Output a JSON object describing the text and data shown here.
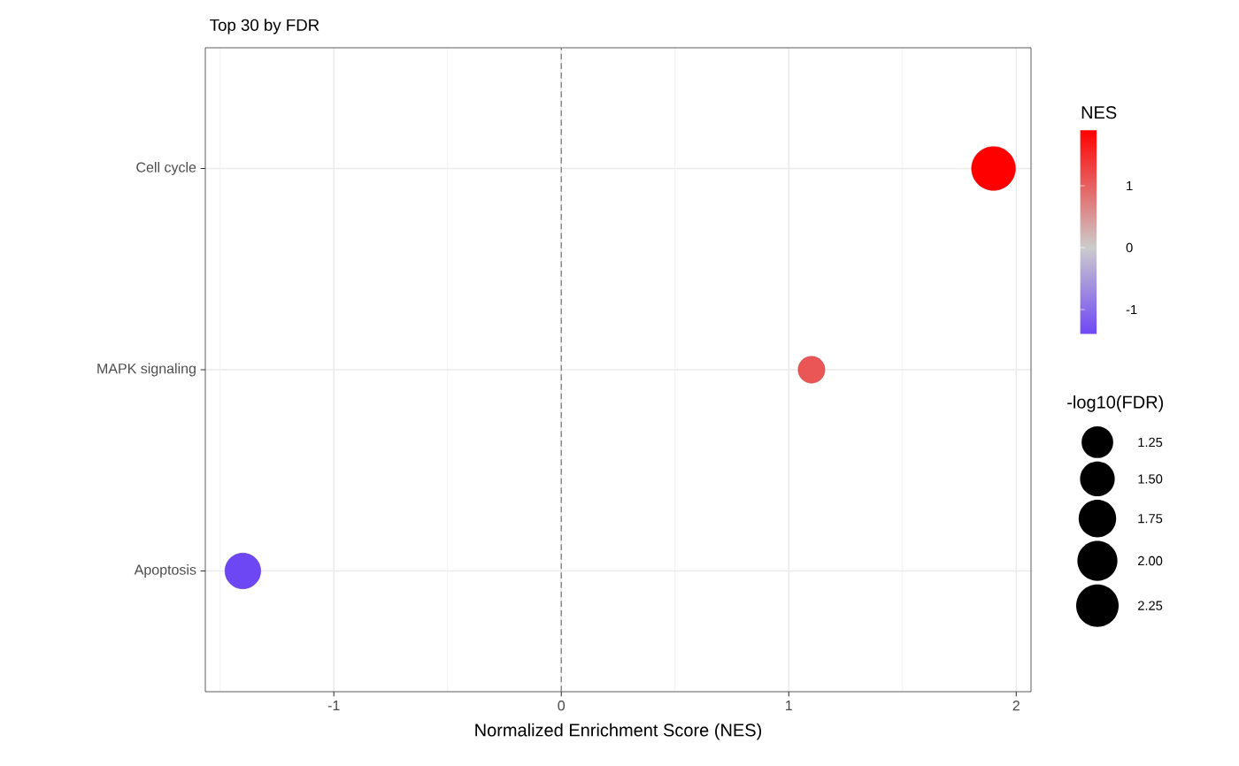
{
  "chart_data": {
    "type": "bubble",
    "orientation": "horizontal",
    "title": "Top 30 by FDR",
    "xlabel": "Normalized Enrichment Score (NES)",
    "categories": [
      "Cell cycle",
      "MAPK signaling",
      "Apoptosis"
    ],
    "values": [
      1.9,
      1.1,
      -1.4
    ],
    "sizes": [
      2.4,
      0.9,
      1.6
    ],
    "cvalues": [
      1.9,
      1.1,
      -1.4
    ],
    "clabel": "NES",
    "clim": [
      -1.4,
      1.9
    ],
    "cticks": [
      -1,
      0,
      1
    ],
    "legend_title": "-log10(FDR)",
    "size_legend": [
      {
        "value": 1.25,
        "label": "1.25"
      },
      {
        "value": 1.5,
        "label": "1.50"
      },
      {
        "value": 1.75,
        "label": "1.75"
      },
      {
        "value": 2.0,
        "label": "2.00"
      },
      {
        "value": 2.25,
        "label": "2.25"
      }
    ],
    "xlim": [
      -1.565,
      2.065
    ],
    "xticks": [
      -1,
      0,
      1,
      2
    ],
    "ref_lines": [
      {
        "axis": "x",
        "value": 0,
        "color": "#7f7f7f",
        "line_style": "dashed"
      }
    ],
    "grid": true
  }
}
